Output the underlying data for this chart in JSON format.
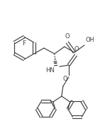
{
  "bg": "#ffffff",
  "lc": "#404040",
  "lw": 0.85,
  "fs": 6.0,
  "xlim": [
    0,
    141
  ],
  "ylim": [
    0,
    171
  ]
}
